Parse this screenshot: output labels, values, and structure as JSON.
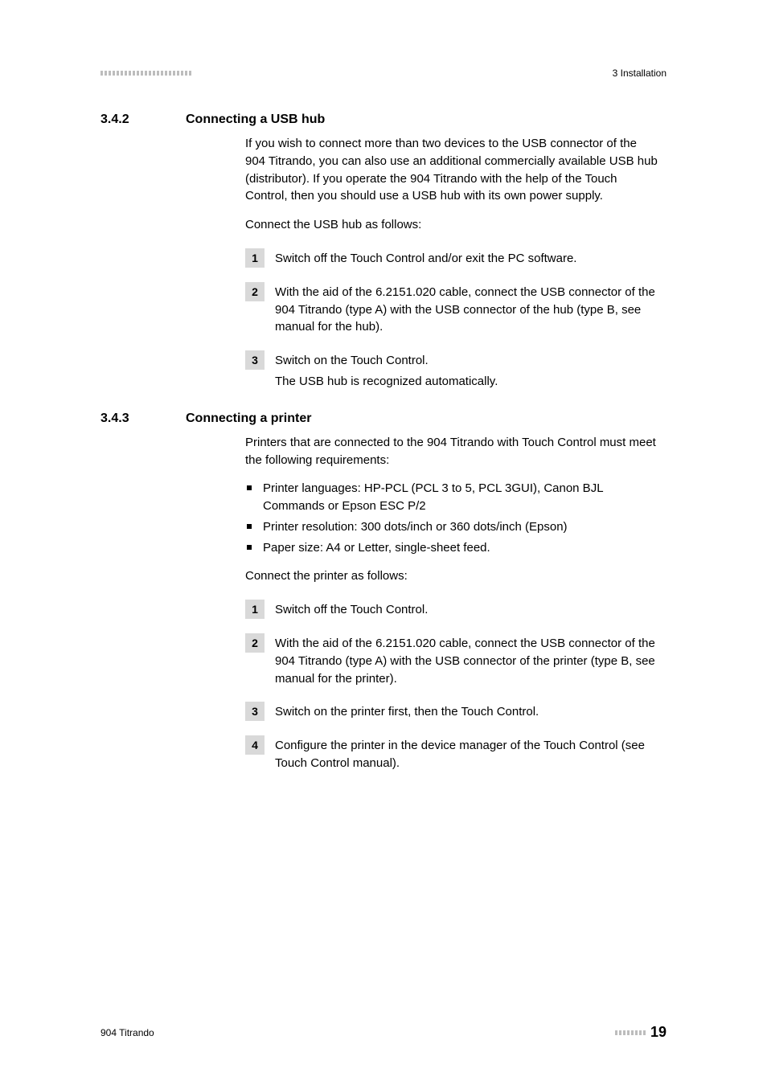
{
  "header": {
    "dash_count": 23,
    "right": "3 Installation"
  },
  "section_342": {
    "number": "3.4.2",
    "title": "Connecting a USB hub",
    "para1": "If you wish to connect more than two devices to the USB connector of the 904 Titrando, you can also use an additional commercially available USB hub (distributor). If you operate the 904 Titrando with the help of the Touch Control, then you should use a USB hub with its own power supply.",
    "para2": "Connect the USB hub as follows:",
    "steps": [
      "Switch off the Touch Control and/or exit the PC software.",
      "With the aid of the 6.2151.020 cable, connect the USB connector of the 904 Titrando (type A) with the USB connector of the hub (type B, see manual for the hub).",
      "Switch on the Touch Control."
    ],
    "step3_sub": "The USB hub is recognized automatically."
  },
  "section_343": {
    "number": "3.4.3",
    "title": "Connecting a printer",
    "para1": "Printers that are connected to the 904 Titrando with Touch Control must meet the following requirements:",
    "bullets": [
      "Printer languages: HP-PCL (PCL 3 to 5, PCL 3GUI), Canon BJL Commands or Epson ESC P/2",
      "Printer resolution: 300 dots/inch or 360 dots/inch (Epson)",
      "Paper size: A4 or Letter, single-sheet feed."
    ],
    "para2": "Connect the printer as follows:",
    "steps": [
      "Switch off the Touch Control.",
      "With the aid of the 6.2151.020 cable, connect the USB connector of the 904 Titrando (type A) with the USB connector of the printer (type B, see manual for the printer).",
      "Switch on the printer first, then the Touch Control.",
      "Configure the printer in the device manager of the Touch Control (see Touch Control manual)."
    ]
  },
  "footer": {
    "left": "904 Titrando",
    "dash_count": 8,
    "page": "19"
  }
}
